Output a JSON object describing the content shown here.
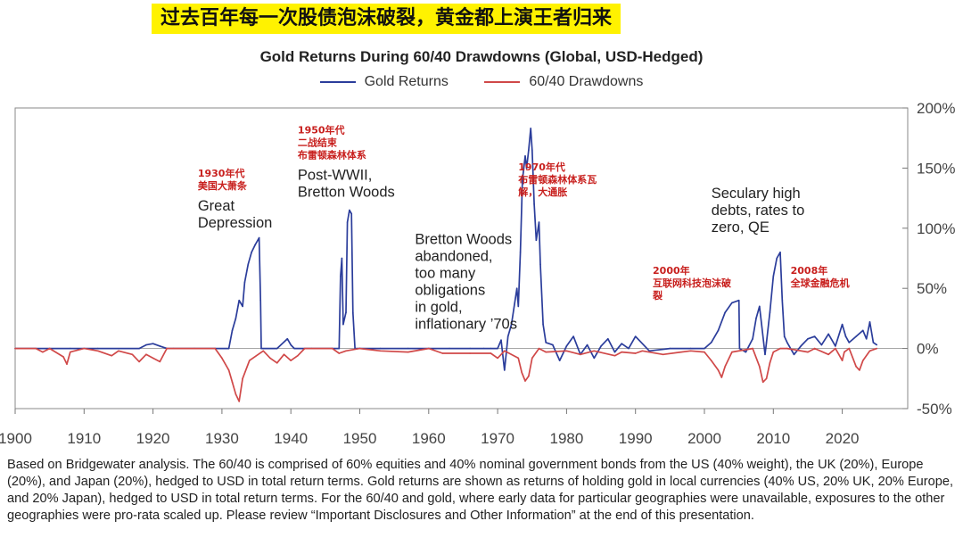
{
  "banner": "过去百年每一次股债泡沫破裂，黄金都上演王者归来",
  "note": "Based on Bridgewater analysis. The 60/40 is comprised of 60% equities and 40% nominal government bonds from the US (40% weight), the UK (20%), Europe (20%), and Japan (20%), hedged to USD in total return terms. Gold returns are shown as returns of holding gold in local currencies (40% US, 20% UK, 20% Europe, and 20% Japan), hedged to USD in total return terms. For the 60/40 and gold, where early data for particular geographies were unavailable, exposures to the other geographies were pro-rata scaled up. Please review “Important Disclosures and Other Information” at the end of this presentation.",
  "chart_data": {
    "type": "line",
    "title": "Gold Returns During 60/40 Drawdowns (Global, USD-Hedged)",
    "xlim": [
      1900,
      2026
    ],
    "ylim": [
      -50,
      200
    ],
    "x_ticks": [
      1900,
      1910,
      1920,
      1930,
      1940,
      1950,
      1960,
      1970,
      1980,
      1990,
      2000,
      2010,
      2020
    ],
    "x_tick_labels": [
      "1900",
      "1910",
      "1920",
      "1930",
      "1940",
      "1950",
      "1960",
      "1970",
      "1980",
      "1990",
      "2000",
      "2010",
      "2020"
    ],
    "y_ticks": [
      -50,
      0,
      50,
      100,
      150,
      200
    ],
    "y_tick_labels": [
      "-50%",
      "0%",
      "50%",
      "100%",
      "150%",
      "200%"
    ],
    "y_axis_side": "right",
    "legend_position": "top-center",
    "series": [
      {
        "name": "Gold Returns",
        "color": "#2b3d9b",
        "x": [
          1900,
          1905,
          1908,
          1912,
          1918,
          1919,
          1920,
          1921,
          1922,
          1923,
          1926,
          1929,
          1931,
          1931.5,
          1932,
          1932.5,
          1933,
          1933.3,
          1933.8,
          1934.3,
          1934.8,
          1935.2,
          1935.4,
          1935.6,
          1935.7,
          1938,
          1939.5,
          1940,
          1940.5,
          1943,
          1946,
          1947,
          1947.2,
          1947.4,
          1947.6,
          1948,
          1948.2,
          1948.5,
          1948.8,
          1949,
          1949.3,
          1950,
          1953,
          1957,
          1960,
          1963,
          1966,
          1968,
          1969,
          1970,
          1970.5,
          1971,
          1971.5,
          1972,
          1972.8,
          1973,
          1973.3,
          1973.6,
          1974,
          1974.2,
          1974.5,
          1974.8,
          1975,
          1975.3,
          1975.6,
          1976,
          1976.2,
          1976.6,
          1977,
          1978,
          1979,
          1980,
          1981,
          1982,
          1983,
          1984,
          1985,
          1986,
          1987,
          1988,
          1989,
          1990,
          1992,
          1995,
          1998,
          2000,
          2001,
          2002,
          2003,
          2004,
          2005,
          2005.1,
          2006,
          2007,
          2007.5,
          2008,
          2008.8,
          2009,
          2009.5,
          2010,
          2010.5,
          2011,
          2011.3,
          2011.6,
          2012,
          2013,
          2014,
          2015,
          2016,
          2017,
          2018,
          2019,
          2020,
          2020.5,
          2021,
          2022,
          2023,
          2023.5,
          2024,
          2024.5,
          2025
        ],
        "y": [
          0,
          0,
          0,
          0,
          0,
          3,
          4,
          2,
          0,
          0,
          0,
          0,
          0,
          15,
          25,
          40,
          35,
          55,
          70,
          80,
          86,
          90,
          92,
          40,
          0,
          0,
          8,
          3,
          0,
          0,
          0,
          0,
          60,
          75,
          20,
          30,
          105,
          115,
          112,
          30,
          0,
          0,
          0,
          0,
          0,
          0,
          0,
          0,
          0,
          0,
          7,
          -18,
          10,
          20,
          50,
          35,
          80,
          140,
          160,
          150,
          165,
          183,
          165,
          120,
          90,
          105,
          70,
          20,
          5,
          3,
          -10,
          2,
          10,
          -5,
          3,
          -8,
          2,
          8,
          -3,
          4,
          0,
          10,
          -2,
          0,
          0,
          0,
          5,
          15,
          30,
          38,
          40,
          0,
          -3,
          8,
          25,
          35,
          -5,
          5,
          30,
          60,
          75,
          80,
          40,
          10,
          5,
          -5,
          2,
          8,
          10,
          3,
          12,
          2,
          20,
          10,
          5,
          10,
          15,
          8,
          22,
          5,
          3
        ]
      },
      {
        "name": "60/40 Drawdowns",
        "color": "#d04848",
        "x": [
          1900,
          1903,
          1904,
          1905,
          1907,
          1907.5,
          1908,
          1910,
          1912,
          1914,
          1915,
          1917,
          1918,
          1919,
          1920,
          1921,
          1922,
          1929,
          1930,
          1931,
          1931.5,
          1932,
          1932.5,
          1933,
          1934,
          1936,
          1937,
          1938,
          1939,
          1940,
          1941,
          1942,
          1946,
          1947,
          1948,
          1950,
          1953,
          1957,
          1960,
          1962,
          1966,
          1969,
          1970,
          1971,
          1973,
          1973.5,
          1974,
          1974.5,
          1975,
          1976,
          1977,
          1980,
          1982,
          1984,
          1987,
          1988,
          1990,
          1991,
          1994,
          1998,
          2000,
          2001,
          2002,
          2002.5,
          2003,
          2004,
          2007,
          2008,
          2008.5,
          2009,
          2009.5,
          2010,
          2011,
          2012,
          2015,
          2016,
          2018,
          2019,
          2020,
          2020.3,
          2021,
          2022,
          2022.5,
          2023,
          2024,
          2025
        ],
        "y": [
          0,
          0,
          -3,
          0,
          -7,
          -13,
          -3,
          0,
          -2,
          -6,
          -2,
          -5,
          -11,
          -5,
          -8,
          -11,
          0,
          0,
          -8,
          -18,
          -28,
          -38,
          -44,
          -25,
          -10,
          -2,
          -8,
          -12,
          -5,
          -10,
          -6,
          0,
          0,
          -4,
          -2,
          0,
          -2,
          -3,
          0,
          -4,
          -4,
          -4,
          -8,
          -2,
          -8,
          -20,
          -27,
          -23,
          -8,
          0,
          -3,
          -2,
          -5,
          -2,
          -6,
          -3,
          -4,
          -2,
          -5,
          -2,
          -3,
          -10,
          -18,
          -24,
          -15,
          -3,
          0,
          -15,
          -28,
          -25,
          -12,
          -3,
          0,
          0,
          -3,
          0,
          -5,
          0,
          -10,
          -3,
          0,
          -15,
          -18,
          -10,
          -2,
          0
        ]
      }
    ],
    "annotations": [
      {
        "x": 1926.5,
        "y": 143,
        "cn": [
          "1930年代",
          "美国大萧条"
        ],
        "en": [
          "Great",
          "Depression"
        ]
      },
      {
        "x": 1941,
        "y": 179,
        "cn": [
          "1950年代",
          "二战结束",
          "布雷顿森林体系"
        ],
        "en": [
          "Post-WWII,",
          "Bretton Woods"
        ]
      },
      {
        "x": 1973,
        "y": 148,
        "cn": [
          "1970年代",
          "布雷顿森林体系瓦",
          "解，大通胀"
        ],
        "en": []
      },
      {
        "x": 1958,
        "y": 87,
        "cn": [],
        "en": [
          "Bretton Woods",
          "abandoned,",
          "too many",
          "obligations",
          "in gold,",
          "inflationary ’70s"
        ]
      },
      {
        "x": 2001,
        "y": 125,
        "cn": [],
        "en": [
          "Seculary high",
          "debts, rates to",
          "zero, QE"
        ]
      },
      {
        "x": 1992.5,
        "y": 62,
        "cn": [
          "2000年",
          "互联网科技泡沫破",
          "裂"
        ],
        "en": []
      },
      {
        "x": 2012.5,
        "y": 62,
        "cn": [
          "2008年",
          "全球金融危机"
        ],
        "en": []
      }
    ]
  }
}
